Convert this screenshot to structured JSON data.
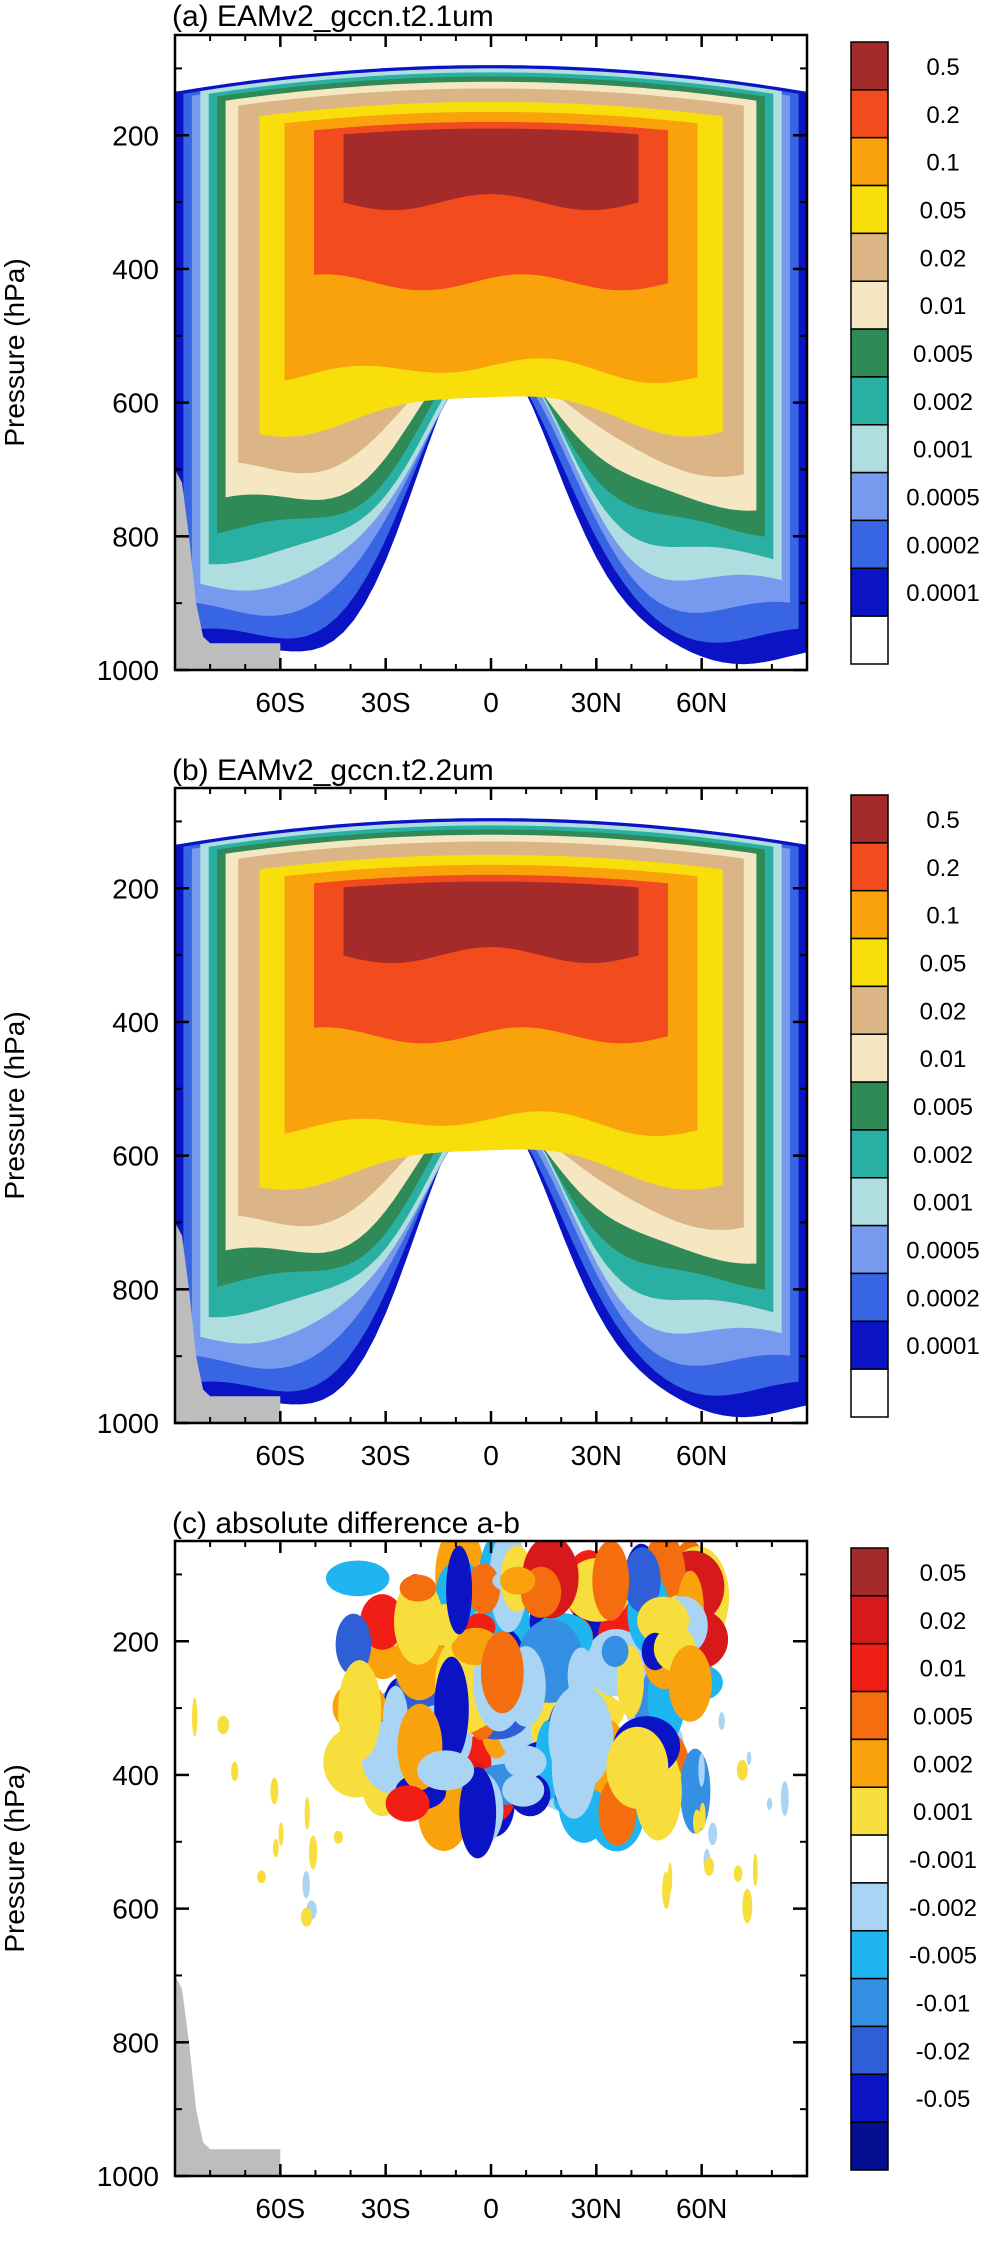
{
  "chart_data": [
    {
      "type": "heatmap",
      "title": "(a) EAMv2_gccn.t2.1um",
      "ylabel": "Pressure (hPa)",
      "x_tick_labels": [
        "60S",
        "30S",
        "0",
        "30N",
        "60N"
      ],
      "x_ticks": [
        -60,
        -30,
        0,
        30,
        60
      ],
      "xlim": [
        -90,
        90
      ],
      "y_tick_labels": [
        "200",
        "400",
        "600",
        "800",
        "1000"
      ],
      "y_ticks": [
        200,
        400,
        600,
        800,
        1000
      ],
      "ylim": [
        1000,
        50
      ],
      "colorbar": {
        "labels": [
          "0.5",
          "0.2",
          "0.1",
          "0.05",
          "0.02",
          "0.01",
          "0.005",
          "0.002",
          "0.001",
          "0.0005",
          "0.0002",
          "0.0001"
        ],
        "colors": [
          "#a52a2a",
          "#f24b1e",
          "#f9a20b",
          "#f8de0b",
          "#dbb586",
          "#f6e7c3",
          "#2f8a58",
          "#29b0a3",
          "#afdde0",
          "#7799ee",
          "#3865e3",
          "#0b14c4",
          "#ffffff"
        ]
      },
      "regime": "positive",
      "land_mask": "gray"
    },
    {
      "type": "heatmap",
      "title": "(b) EAMv2_gccn.t2.2um",
      "ylabel": "Pressure (hPa)",
      "x_tick_labels": [
        "60S",
        "30S",
        "0",
        "30N",
        "60N"
      ],
      "x_ticks": [
        -60,
        -30,
        0,
        30,
        60
      ],
      "xlim": [
        -90,
        90
      ],
      "y_tick_labels": [
        "200",
        "400",
        "600",
        "800",
        "1000"
      ],
      "y_ticks": [
        200,
        400,
        600,
        800,
        1000
      ],
      "ylim": [
        1000,
        50
      ],
      "colorbar": {
        "labels": [
          "0.5",
          "0.2",
          "0.1",
          "0.05",
          "0.02",
          "0.01",
          "0.005",
          "0.002",
          "0.001",
          "0.0005",
          "0.0002",
          "0.0001"
        ],
        "colors": [
          "#a52a2a",
          "#f24b1e",
          "#f9a20b",
          "#f8de0b",
          "#dbb586",
          "#f6e7c3",
          "#2f8a58",
          "#29b0a3",
          "#afdde0",
          "#7799ee",
          "#3865e3",
          "#0b14c4",
          "#ffffff"
        ]
      },
      "regime": "positive",
      "land_mask": "gray"
    },
    {
      "type": "heatmap",
      "title": "(c) absolute difference a-b",
      "ylabel": "Pressure (hPa)",
      "x_tick_labels": [
        "60S",
        "30S",
        "0",
        "30N",
        "60N"
      ],
      "x_ticks": [
        -60,
        -30,
        0,
        30,
        60
      ],
      "xlim": [
        -90,
        90
      ],
      "y_tick_labels": [
        "200",
        "400",
        "600",
        "800",
        "1000"
      ],
      "y_ticks": [
        200,
        400,
        600,
        800,
        1000
      ],
      "ylim": [
        1000,
        50
      ],
      "colorbar": {
        "labels": [
          "0.05",
          "0.02",
          "0.01",
          "0.005",
          "0.002",
          "0.001",
          "-0.001",
          "-0.002",
          "-0.005",
          "-0.01",
          "-0.02",
          "-0.05"
        ],
        "colors": [
          "#a52a2a",
          "#d7191c",
          "#f01e14",
          "#f46d0e",
          "#f9a20b",
          "#f8de3c",
          "#ffffff",
          "#a9d4f3",
          "#1fb5f0",
          "#3590e3",
          "#2f5fd6",
          "#0b14c4",
          "#050f8f"
        ]
      },
      "regime": "difference",
      "land_mask": "gray"
    }
  ]
}
